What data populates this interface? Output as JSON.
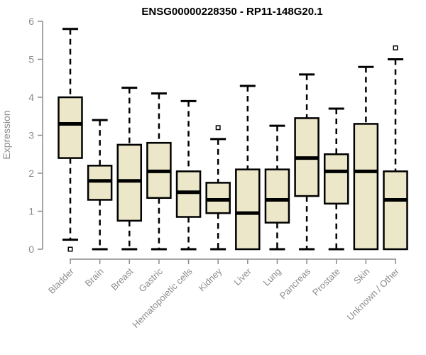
{
  "colors": {
    "background": "#FFFFFF",
    "box_fill": "#EDE7C9",
    "box_stroke": "#000000",
    "median": "#000000",
    "whisker": "#000000",
    "axis": "#8C8C8C",
    "tick_label": "#8C8C8C",
    "title": "#000000"
  },
  "chart_data": {
    "type": "boxplot",
    "title": "ENSG00000228350 - RP11-148G20.1",
    "xlabel": "",
    "ylabel": "Expression",
    "ylim": [
      0,
      6
    ],
    "yticks": [
      0,
      1,
      2,
      3,
      4,
      5,
      6
    ],
    "grid": false,
    "legend": false,
    "categories": [
      "Bladder",
      "Brain",
      "Breast",
      "Gastric",
      "Hematopoietic cells",
      "Kidney",
      "Liver",
      "Lung",
      "Pancreas",
      "Prostate",
      "Skin",
      "Unknown / Other"
    ],
    "series": [
      {
        "category": "Bladder",
        "whisker_low": 0.25,
        "q1": 2.4,
        "median": 3.3,
        "q3": 4.0,
        "whisker_high": 5.8,
        "outliers": [
          0
        ]
      },
      {
        "category": "Brain",
        "whisker_low": 0,
        "q1": 1.3,
        "median": 1.8,
        "q3": 2.2,
        "whisker_high": 3.4,
        "outliers": []
      },
      {
        "category": "Breast",
        "whisker_low": 0,
        "q1": 0.75,
        "median": 1.8,
        "q3": 2.75,
        "whisker_high": 4.25,
        "outliers": []
      },
      {
        "category": "Gastric",
        "whisker_low": 0,
        "q1": 1.35,
        "median": 2.05,
        "q3": 2.8,
        "whisker_high": 4.1,
        "outliers": []
      },
      {
        "category": "Hematopoietic cells",
        "whisker_low": 0,
        "q1": 0.85,
        "median": 1.5,
        "q3": 2.05,
        "whisker_high": 3.9,
        "outliers": []
      },
      {
        "category": "Kidney",
        "whisker_low": 0,
        "q1": 0.95,
        "median": 1.3,
        "q3": 1.75,
        "whisker_high": 2.9,
        "outliers": [
          3.2
        ]
      },
      {
        "category": "Liver",
        "whisker_low": 0,
        "q1": 0,
        "median": 0.95,
        "q3": 2.1,
        "whisker_high": 4.3,
        "outliers": []
      },
      {
        "category": "Lung",
        "whisker_low": 0,
        "q1": 0.7,
        "median": 1.3,
        "q3": 2.1,
        "whisker_high": 3.25,
        "outliers": []
      },
      {
        "category": "Pancreas",
        "whisker_low": 0,
        "q1": 1.4,
        "median": 2.4,
        "q3": 3.45,
        "whisker_high": 4.6,
        "outliers": []
      },
      {
        "category": "Prostate",
        "whisker_low": 0,
        "q1": 1.2,
        "median": 2.05,
        "q3": 2.5,
        "whisker_high": 3.7,
        "outliers": []
      },
      {
        "category": "Skin",
        "whisker_low": 0,
        "q1": 0,
        "median": 2.05,
        "q3": 3.3,
        "whisker_high": 4.8,
        "outliers": []
      },
      {
        "category": "Unknown / Other",
        "whisker_low": 0,
        "q1": 0,
        "median": 1.3,
        "q3": 2.05,
        "whisker_high": 5.0,
        "outliers": [
          5.3
        ]
      }
    ]
  }
}
